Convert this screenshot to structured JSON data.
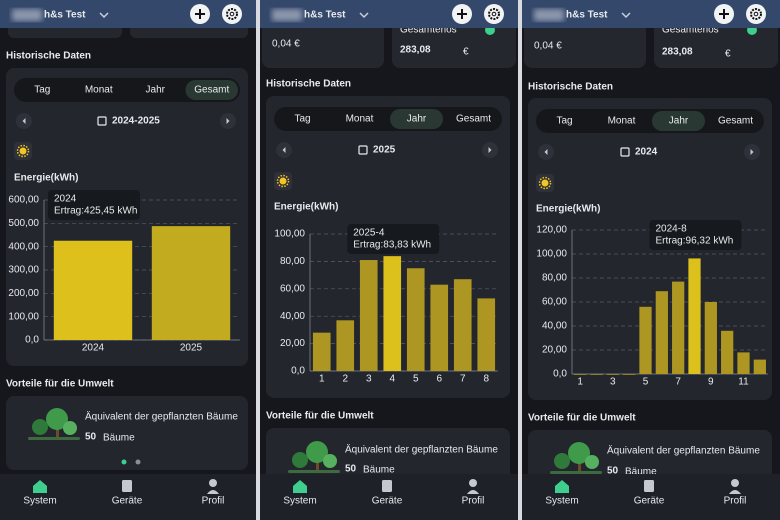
{
  "app_title": "h&s Test",
  "section_history": "Historische Daten",
  "tabs": [
    "Tag",
    "Monat",
    "Jahr",
    "Gesamt"
  ],
  "section_environment": "Vorteile für die Umwelt",
  "environment": {
    "label": "Äquivalent der gepflanzten Bäume",
    "count": 50,
    "unit": "Bäume"
  },
  "nav": [
    "System",
    "Geräte",
    "Profil"
  ],
  "screens": [
    {
      "active_tab": 3,
      "period": "2024-2025",
      "chart": {
        "type": "bar",
        "title": "Energie(kWh)",
        "categories": [
          "2024",
          "2025"
        ],
        "values": [
          425.45,
          488
        ],
        "color": "#c2ab1e",
        "highlight_color": "#ddc01b",
        "highlight": 0,
        "ylim": [
          0,
          600
        ],
        "yticks": [
          {
            "value": 0,
            "label": "0,0"
          },
          {
            "value": 100,
            "label": "100,00"
          },
          {
            "value": 200,
            "label": "200,00"
          },
          {
            "value": 300,
            "label": "300,00"
          },
          {
            "value": 400,
            "label": "400,00"
          },
          {
            "value": 500,
            "label": "500,00"
          },
          {
            "value": 600,
            "label": "600,00"
          }
        ],
        "grid": true,
        "tooltip": {
          "title": "2024",
          "text": "Ertrag:425,45 kWh"
        }
      }
    },
    {
      "active_tab": 2,
      "period": "2025",
      "stats": {
        "price": "0,04 €",
        "revenue_label": "Gesamterlös",
        "revenue": "283,08",
        "currency": "€"
      },
      "chart": {
        "type": "bar",
        "title": "Energie(kWh)",
        "categories": [
          "1",
          "2",
          "3",
          "4",
          "5",
          "6",
          "7",
          "8"
        ],
        "values": [
          28,
          37,
          81,
          83.83,
          75,
          63,
          67,
          53
        ],
        "color": "#ad9722",
        "highlight_color": "#dcc11c",
        "highlight": 3,
        "ylim": [
          0,
          100
        ],
        "yticks": [
          {
            "value": 0,
            "label": "0,0"
          },
          {
            "value": 20,
            "label": "20,00"
          },
          {
            "value": 40,
            "label": "40,00"
          },
          {
            "value": 60,
            "label": "60,00"
          },
          {
            "value": 80,
            "label": "80,00"
          },
          {
            "value": 100,
            "label": "100,00"
          }
        ],
        "grid": true,
        "tooltip": {
          "title": "2025-4",
          "text": "Ertrag:83,83 kWh"
        }
      }
    },
    {
      "active_tab": 2,
      "period": "2024",
      "stats": {
        "price": "0,04 €",
        "revenue_label": "Gesamterlös",
        "revenue": "283,08",
        "currency": "€"
      },
      "chart": {
        "type": "bar",
        "title": "Energie(kWh)",
        "categories": [
          "1",
          null,
          "3",
          null,
          "5",
          null,
          "7",
          null,
          "9",
          null,
          "11",
          null
        ],
        "values": [
          0,
          0,
          0,
          0,
          56,
          69,
          77,
          96.32,
          60,
          36,
          18,
          12
        ],
        "color": "#ad9722",
        "highlight_color": "#dcc11c",
        "highlight": 7,
        "ylim": [
          0,
          120
        ],
        "yticks": [
          {
            "value": 0,
            "label": "0,0"
          },
          {
            "value": 20,
            "label": "20,00"
          },
          {
            "value": 40,
            "label": "40,00"
          },
          {
            "value": 60,
            "label": "60,00"
          },
          {
            "value": 80,
            "label": "80,00"
          },
          {
            "value": 100,
            "label": "100,00"
          },
          {
            "value": 120,
            "label": "120,00"
          }
        ],
        "grid": true,
        "tooltip": {
          "title": "2024-8",
          "text": "Ertrag:96,32 kWh"
        }
      }
    }
  ]
}
